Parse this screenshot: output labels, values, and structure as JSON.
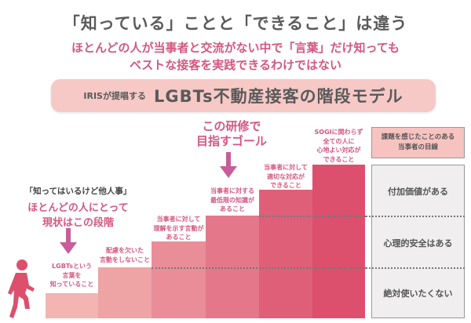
{
  "header": {
    "title": "「知っている」ことと「できること」は違う",
    "subtitle_line1": "ほとんどの人が当事者と交流がない中で「言葉」だけ知っても",
    "subtitle_line2": "ベストな接客を実践できるわけではない"
  },
  "banner": {
    "prefix": "IRISが提唱する",
    "title": "LGBTs不動産接客の階段モデル"
  },
  "goal": {
    "line1": "この研修で",
    "line2": "目指すゴール"
  },
  "current": {
    "quote": "「知ってはいるけど他人事」",
    "line1": "ほとんどの人にとって",
    "line2": "現状はこの段階"
  },
  "steps": [
    {
      "label": "LGBTsという\n言葉を\n知っていること",
      "color": "#f2b5b1"
    },
    {
      "label": "配慮を欠いた\n言動をしないこと",
      "color": "#eea3a4"
    },
    {
      "label": "当事者に対して\n理解を示す言動が\nあること",
      "color": "#e98d98"
    },
    {
      "label": "当事者に対する\n最低限の知識が\nあること",
      "color": "#e4788a"
    },
    {
      "label": "当事者に対して\n適切な対応が\nできること",
      "color": "#df5f79"
    },
    {
      "label": "SOGIに関わらず\n全ての人に\n心地よい対応が\nできること",
      "color": "#dc4f6d"
    }
  ],
  "panel": {
    "header": "課題を感じたことのある\n当事者の目線",
    "rows": [
      "付加価値がある",
      "心理的安全はある",
      "絶対使いたくない"
    ]
  },
  "colors": {
    "accent": "#d6577f",
    "banner": "#f6c9c6"
  }
}
